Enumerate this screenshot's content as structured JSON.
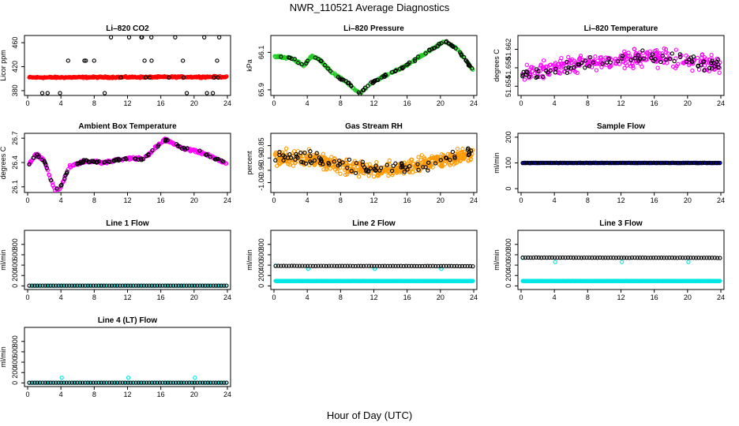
{
  "figure": {
    "title": "NWR_110521  Average Diagnostics",
    "xlabel": "Hour of Day (UTC)"
  },
  "chart_data": [
    {
      "type": "scatter",
      "title": "Li–820 CO2",
      "ylabel": "Licor ppm",
      "xlim": [
        0,
        24
      ],
      "ylim": [
        372,
        472
      ],
      "xticks": [
        "0",
        "4",
        "8",
        "12",
        "16",
        "20",
        "24"
      ],
      "yticks": [
        "380",
        "420",
        "460"
      ],
      "ytick_values": [
        380,
        420,
        460
      ],
      "series": [
        {
          "color": "#ff0000",
          "style": "dense",
          "y_start": 402,
          "y_end": 403,
          "noise": 1.5,
          "n": 300
        },
        {
          "color": "#000000",
          "style": "cal",
          "levels": [
            469,
            430,
            402,
            376
          ],
          "n": 30
        }
      ]
    },
    {
      "type": "scatter",
      "title": "Li–820 Pressure",
      "ylabel": "kPa",
      "xlim": [
        0,
        24
      ],
      "ylim": [
        65.87,
        66.19
      ],
      "xticks": [
        "0",
        "4",
        "8",
        "12",
        "16",
        "20",
        "24"
      ],
      "yticks": [
        "65.9",
        "66.1"
      ],
      "ytick_values": [
        65.9,
        66.1
      ],
      "series": [
        {
          "color": "#22cc22",
          "style": "path",
          "noise": 0.006,
          "n": 320,
          "path": [
            [
              0,
              66.08
            ],
            [
              2,
              66.07
            ],
            [
              3.6,
              66.03
            ],
            [
              4.5,
              66.08
            ],
            [
              5.5,
              66.06
            ],
            [
              7,
              65.99
            ],
            [
              8.5,
              65.95
            ],
            [
              10.3,
              65.88
            ],
            [
              11.5,
              65.93
            ],
            [
              13.5,
              65.98
            ],
            [
              15.5,
              66.02
            ],
            [
              18,
              66.09
            ],
            [
              20.5,
              66.16
            ],
            [
              22,
              66.12
            ],
            [
              24,
              66.0
            ]
          ]
        },
        {
          "color": "#000000",
          "style": "path_sparse",
          "noise": 0.008,
          "n": 90,
          "path": [
            [
              0,
              66.08
            ],
            [
              2,
              66.07
            ],
            [
              3.6,
              66.03
            ],
            [
              4.5,
              66.08
            ],
            [
              5.5,
              66.06
            ],
            [
              7,
              65.99
            ],
            [
              8.5,
              65.95
            ],
            [
              10.3,
              65.88
            ],
            [
              11.5,
              65.93
            ],
            [
              13.5,
              65.98
            ],
            [
              15.5,
              66.02
            ],
            [
              18,
              66.09
            ],
            [
              20.5,
              66.16
            ],
            [
              22,
              66.12
            ],
            [
              24,
              66.0
            ]
          ]
        }
      ]
    },
    {
      "type": "scatter",
      "title": "Li–820 Temperature",
      "ylabel": "degrees C",
      "xlim": [
        0,
        24
      ],
      "ylim": [
        51.652,
        51.665
      ],
      "xticks": [
        "0",
        "4",
        "8",
        "12",
        "16",
        "20",
        "24"
      ],
      "yticks": [
        "51.654",
        "51.658",
        "51.662"
      ],
      "ytick_values": [
        51.654,
        51.658,
        51.662
      ],
      "series": [
        {
          "color": "#ff00ff",
          "style": "path",
          "noise": 0.0022,
          "n": 320,
          "path": [
            [
              0,
              51.6565
            ],
            [
              6,
              51.6585
            ],
            [
              12,
              51.6598
            ],
            [
              16,
              51.6605
            ],
            [
              20,
              51.6595
            ],
            [
              24,
              51.6585
            ]
          ]
        },
        {
          "color": "#000000",
          "style": "path_sparse",
          "noise": 0.0015,
          "n": 80,
          "path": [
            [
              0,
              51.6565
            ],
            [
              6,
              51.6585
            ],
            [
              12,
              51.6598
            ],
            [
              16,
              51.6605
            ],
            [
              20,
              51.6595
            ],
            [
              24,
              51.6585
            ]
          ]
        }
      ]
    },
    {
      "type": "scatter",
      "title": "Ambient Box Temperature",
      "ylabel": "degrees C",
      "xlim": [
        0,
        24
      ],
      "ylim": [
        26.03,
        26.76
      ],
      "xticks": [
        "0",
        "4",
        "8",
        "12",
        "16",
        "20",
        "24"
      ],
      "yticks": [
        "26.1",
        "26.4",
        "26.7"
      ],
      "ytick_values": [
        26.1,
        26.4,
        26.7
      ],
      "series": [
        {
          "color": "#ff00ff",
          "style": "path",
          "noise": 0.02,
          "n": 320,
          "path": [
            [
              0,
              26.35
            ],
            [
              1,
              26.5
            ],
            [
              2,
              26.42
            ],
            [
              3.3,
              26.05
            ],
            [
              4,
              26.1
            ],
            [
              5,
              26.35
            ],
            [
              7,
              26.42
            ],
            [
              9,
              26.4
            ],
            [
              12,
              26.45
            ],
            [
              14,
              26.45
            ],
            [
              15.5,
              26.6
            ],
            [
              16.5,
              26.68
            ],
            [
              18.5,
              26.58
            ],
            [
              20,
              26.55
            ],
            [
              22,
              26.48
            ],
            [
              24,
              26.38
            ]
          ]
        },
        {
          "color": "#000000",
          "style": "path_sparse",
          "noise": 0.02,
          "n": 90,
          "path": [
            [
              0,
              26.35
            ],
            [
              1,
              26.5
            ],
            [
              2,
              26.42
            ],
            [
              3.3,
              26.05
            ],
            [
              4,
              26.1
            ],
            [
              5,
              26.35
            ],
            [
              7,
              26.42
            ],
            [
              9,
              26.4
            ],
            [
              12,
              26.45
            ],
            [
              14,
              26.45
            ],
            [
              15.5,
              26.6
            ],
            [
              16.5,
              26.68
            ],
            [
              18.5,
              26.58
            ],
            [
              20,
              26.55
            ],
            [
              22,
              26.48
            ],
            [
              24,
              26.38
            ]
          ]
        }
      ]
    },
    {
      "type": "scatter",
      "title": "Gas Stream RH",
      "ylabel": "percent",
      "xlim": [
        0,
        24
      ],
      "ylim": [
        -1.04,
        -0.8
      ],
      "xticks": [
        "0",
        "4",
        "8",
        "12",
        "16",
        "20",
        "24"
      ],
      "yticks": [
        "-1.00",
        "-0.95",
        "-0.90",
        "-0.85"
      ],
      "ytick_values": [
        -1.0,
        -0.95,
        -0.9,
        -0.85
      ],
      "series": [
        {
          "color": "#ff9900",
          "style": "path",
          "noise": 0.035,
          "n": 520,
          "path": [
            [
              0,
              -0.9
            ],
            [
              4,
              -0.9
            ],
            [
              8,
              -0.93
            ],
            [
              12,
              -0.95
            ],
            [
              16,
              -0.94
            ],
            [
              20,
              -0.91
            ],
            [
              24,
              -0.88
            ]
          ]
        },
        {
          "color": "#000000",
          "style": "path_sparse",
          "noise": 0.03,
          "n": 90,
          "path": [
            [
              0,
              -0.9
            ],
            [
              4,
              -0.9
            ],
            [
              8,
              -0.93
            ],
            [
              12,
              -0.95
            ],
            [
              16,
              -0.94
            ],
            [
              20,
              -0.91
            ],
            [
              24,
              -0.88
            ]
          ]
        }
      ]
    },
    {
      "type": "scatter",
      "title": "Sample Flow",
      "ylabel": "ml/min",
      "xlim": [
        0,
        24
      ],
      "ylim": [
        -15,
        215
      ],
      "xticks": [
        "0",
        "4",
        "8",
        "12",
        "16",
        "20",
        "24"
      ],
      "yticks": [
        "0",
        "100",
        "200"
      ],
      "ytick_values": [
        0,
        100,
        200
      ],
      "series": [
        {
          "color": "#0000ff",
          "style": "dense",
          "y_start": 100,
          "y_end": 100,
          "noise": 0.6,
          "n": 320
        },
        {
          "color": "#000000",
          "style": "dense",
          "y_start": 100,
          "y_end": 100,
          "noise": 0.6,
          "n": 90
        }
      ]
    },
    {
      "type": "scatter",
      "title": "Line 1 Flow",
      "ylabel": "ml/min",
      "xlim": [
        0,
        24
      ],
      "ylim": [
        -70,
        1070
      ],
      "xticks": [
        "0",
        "4",
        "8",
        "12",
        "16",
        "20",
        "24"
      ],
      "yticks": [
        "0",
        "200",
        "400",
        "600",
        "800"
      ],
      "ytick_values": [
        0,
        200,
        400,
        600,
        800
      ],
      "series": [
        {
          "color": "#00e5e5",
          "style": "dense",
          "y_start": 5,
          "y_end": 5,
          "noise": 0,
          "n": 90
        },
        {
          "color": "#000000",
          "style": "dense",
          "y_start": 5,
          "y_end": 5,
          "noise": 0,
          "n": 75
        }
      ]
    },
    {
      "type": "scatter",
      "title": "Line 2 Flow",
      "ylabel": "ml/min",
      "xlim": [
        0,
        24
      ],
      "ylim": [
        -70,
        1070
      ],
      "xticks": [
        "0",
        "4",
        "8",
        "12",
        "16",
        "20",
        "24"
      ],
      "yticks": [
        "0",
        "200",
        "400",
        "600",
        "800"
      ],
      "ytick_values": [
        0,
        200,
        400,
        600,
        800
      ],
      "series": [
        {
          "color": "#00e5e5",
          "style": "dense",
          "y_start": 95,
          "y_end": 95,
          "noise": 2,
          "n": 420
        },
        {
          "color": "#00e5e5",
          "style": "points",
          "x": [
            0.2,
            4.1,
            12.1,
            20.1
          ],
          "y": [
            390,
            330,
            330,
            330
          ]
        },
        {
          "color": "#000000",
          "style": "dense",
          "y_start": 385,
          "y_end": 380,
          "noise": 3,
          "n": 75
        }
      ]
    },
    {
      "type": "scatter",
      "title": "Line 3 Flow",
      "ylabel": "ml/min",
      "xlim": [
        0,
        24
      ],
      "ylim": [
        -70,
        1070
      ],
      "xticks": [
        "0",
        "4",
        "8",
        "12",
        "16",
        "20",
        "24"
      ],
      "yticks": [
        "0",
        "200",
        "400",
        "600",
        "800"
      ],
      "ytick_values": [
        0,
        200,
        400,
        600,
        800
      ],
      "series": [
        {
          "color": "#00e5e5",
          "style": "dense",
          "y_start": 95,
          "y_end": 95,
          "noise": 2,
          "n": 420
        },
        {
          "color": "#00e5e5",
          "style": "points",
          "x": [
            0.2,
            4.1,
            12.1,
            20.1
          ],
          "y": [
            540,
            460,
            460,
            460
          ]
        },
        {
          "color": "#000000",
          "style": "dense",
          "y_start": 545,
          "y_end": 540,
          "noise": 3,
          "n": 75
        }
      ]
    },
    {
      "type": "scatter",
      "title": "Line 4 (LT) Flow",
      "ylabel": "ml/min",
      "xlim": [
        0,
        24
      ],
      "ylim": [
        -70,
        1070
      ],
      "xticks": [
        "0",
        "4",
        "8",
        "12",
        "16",
        "20",
        "24"
      ],
      "yticks": [
        "0",
        "200",
        "400",
        "600",
        "800"
      ],
      "ytick_values": [
        0,
        200,
        400,
        600,
        800
      ],
      "series": [
        {
          "color": "#00e5e5",
          "style": "dense",
          "y_start": 5,
          "y_end": 5,
          "noise": 0,
          "n": 90
        },
        {
          "color": "#00e5e5",
          "style": "points",
          "x": [
            0.2,
            4.1,
            12.1,
            20.1
          ],
          "y": [
            0,
            100,
            100,
            100
          ]
        },
        {
          "color": "#000000",
          "style": "dense",
          "y_start": 5,
          "y_end": 5,
          "noise": 0,
          "n": 75
        }
      ]
    }
  ]
}
